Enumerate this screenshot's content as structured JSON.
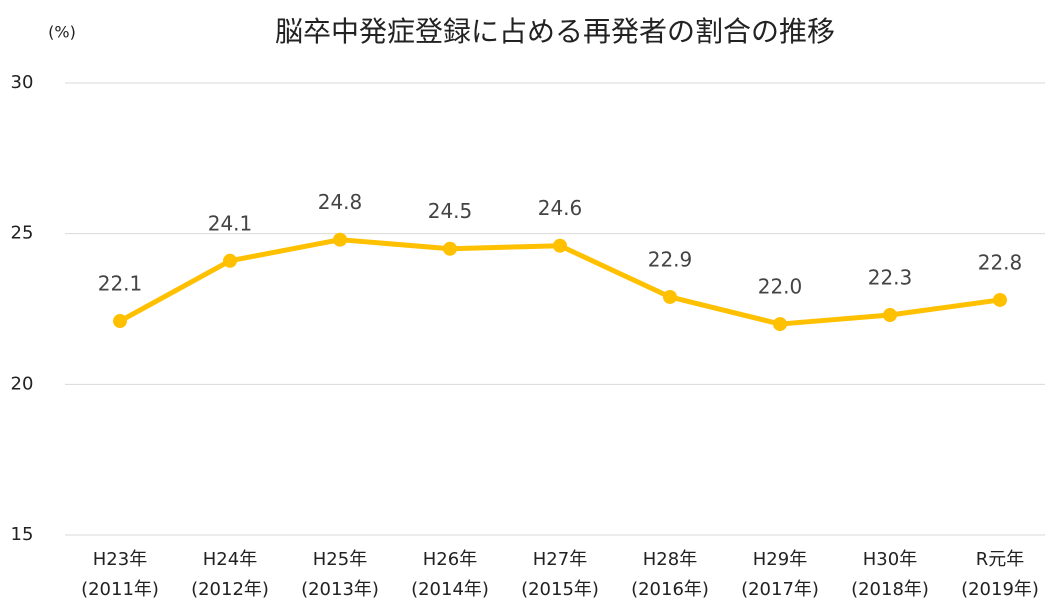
{
  "chart_data": {
    "type": "line",
    "title": "脳卒中発症登録に占める再発者の割合の推移",
    "y_label": "(%)",
    "categories": [
      [
        "H23年",
        "(2011年)"
      ],
      [
        "H24年",
        "(2012年)"
      ],
      [
        "H25年",
        "(2013年)"
      ],
      [
        "H26年",
        "(2014年)"
      ],
      [
        "H27年",
        "(2015年)"
      ],
      [
        "H28年",
        "(2016年)"
      ],
      [
        "H29年",
        "(2017年)"
      ],
      [
        "H30年",
        "(2018年)"
      ],
      [
        "R元年",
        "(2019年)"
      ]
    ],
    "values": [
      22.1,
      24.1,
      24.8,
      24.5,
      24.6,
      22.9,
      22.0,
      22.3,
      22.8
    ],
    "value_labels": [
      "22.1",
      "24.1",
      "24.8",
      "24.5",
      "24.6",
      "22.9",
      "22.0",
      "22.3",
      "22.8"
    ],
    "color": "#FFC000",
    "ylim": [
      15,
      30
    ],
    "yticks": [
      15,
      20,
      25,
      30
    ],
    "grid": true
  }
}
